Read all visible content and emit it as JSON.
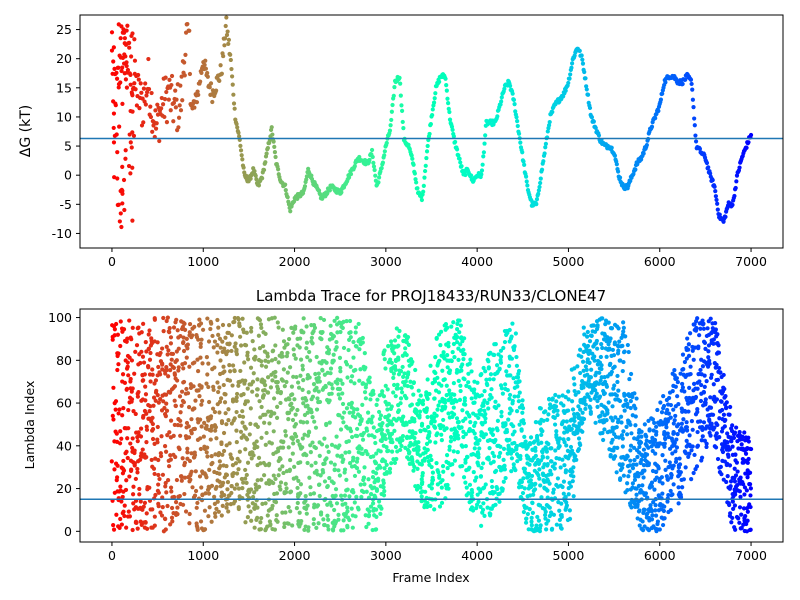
{
  "chart_data": [
    {
      "type": "scatter",
      "title": "",
      "xlabel": "",
      "ylabel": "ΔG (kT)",
      "xlim": [
        -350,
        7350
      ],
      "ylim": [
        -12.5,
        27.5
      ],
      "xticks": [
        0,
        1000,
        2000,
        3000,
        4000,
        5000,
        6000,
        7000
      ],
      "yticks": [
        -10,
        -5,
        0,
        5,
        10,
        15,
        20,
        25
      ],
      "colormap": "rainbow (red at frame 0 → violet at frame 7000)",
      "hline": {
        "y": 6.3,
        "color": "#1f77b4"
      },
      "trace_keypoints": {
        "x": [
          0,
          50,
          120,
          200,
          260,
          330,
          400,
          480,
          550,
          620,
          700,
          760,
          800,
          840,
          880,
          950,
          1000,
          1050,
          1100,
          1200,
          1250,
          1300,
          1350,
          1400,
          1450,
          1500,
          1550,
          1600,
          1650,
          1700,
          1750,
          1800,
          1850,
          1900,
          1950,
          2000,
          2100,
          2150,
          2200,
          2300,
          2400,
          2500,
          2600,
          2700,
          2800,
          2850,
          2900,
          2950,
          3000,
          3050,
          3100,
          3150,
          3200,
          3250,
          3300,
          3350,
          3400,
          3450,
          3500,
          3550,
          3600,
          3650,
          3700,
          3750,
          3800,
          3850,
          3900,
          3950,
          4000,
          4050,
          4100,
          4150,
          4200,
          4250,
          4300,
          4350,
          4400,
          4450,
          4500,
          4550,
          4600,
          4650,
          4700,
          4750,
          4800,
          4850,
          4900,
          4950,
          5000,
          5050,
          5100,
          5150,
          5200,
          5250,
          5300,
          5350,
          5400,
          5450,
          5500,
          5550,
          5600,
          5650,
          5700,
          5750,
          5800,
          5850,
          5900,
          5950,
          6000,
          6050,
          6100,
          6150,
          6200,
          6250,
          6300,
          6350,
          6400,
          6450,
          6500,
          6550,
          6600,
          6650,
          6700,
          6750,
          6800,
          6850,
          6900,
          6950,
          7000
        ],
        "y": [
          20,
          14,
          22,
          18,
          15,
          12,
          16,
          8,
          12,
          14,
          11,
          13,
          22,
          24,
          10,
          15,
          20,
          16,
          14,
          18,
          26,
          20,
          10,
          6,
          0,
          -1,
          1,
          -2,
          0,
          4,
          8,
          2,
          -1,
          -2,
          -6,
          -4,
          -3,
          1,
          -1,
          -4,
          -2,
          -3,
          0,
          3,
          2,
          4,
          -2,
          1,
          5,
          8,
          16,
          17,
          6,
          5,
          2,
          -3,
          -4,
          4,
          10,
          15,
          17,
          17,
          10,
          6,
          3,
          0,
          1,
          -1,
          0,
          0,
          9,
          9,
          9,
          12,
          15,
          16,
          13,
          8,
          3,
          -2,
          -5,
          -5,
          0,
          5,
          10,
          12,
          13,
          14,
          16,
          20,
          22,
          20,
          15,
          10,
          8,
          6,
          5,
          5,
          4,
          0,
          -2,
          -2,
          0,
          2,
          3,
          5,
          8,
          10,
          12,
          16,
          17,
          17,
          16,
          16,
          17,
          16,
          5,
          4,
          3,
          0,
          -2,
          -7,
          -8,
          -5,
          -5,
          0,
          3,
          5,
          7
        ]
      }
    },
    {
      "type": "scatter",
      "title": "Lambda Trace for PROJ18433/RUN33/CLONE47",
      "xlabel": "Frame Index",
      "ylabel": "Lambda Index",
      "xlim": [
        -350,
        7350
      ],
      "ylim": [
        -5,
        104
      ],
      "xticks": [
        0,
        1000,
        2000,
        3000,
        4000,
        5000,
        6000,
        7000
      ],
      "yticks": [
        0,
        20,
        40,
        60,
        80,
        100
      ],
      "colormap": "rainbow (red at frame 0 → violet at frame 7000)",
      "hline": {
        "y": 15,
        "color": "#1f77b4"
      },
      "density_bands": {
        "x": [
          0,
          500,
          1000,
          1300,
          1500,
          1800,
          2100,
          2400,
          2700,
          2900,
          3000,
          3200,
          3400,
          3600,
          3800,
          4000,
          4200,
          4400,
          4550,
          4700,
          5000,
          5200,
          5400,
          5600,
          5800,
          6000,
          6200,
          6400,
          6600,
          6800,
          7000
        ],
        "low": [
          0,
          0,
          0,
          10,
          0,
          0,
          0,
          0,
          0,
          0,
          20,
          40,
          10,
          10,
          30,
          0,
          10,
          30,
          0,
          0,
          0,
          60,
          40,
          20,
          0,
          0,
          10,
          30,
          40,
          0,
          0
        ],
        "high": [
          100,
          100,
          100,
          100,
          100,
          100,
          100,
          100,
          100,
          60,
          90,
          100,
          60,
          100,
          100,
          70,
          90,
          100,
          40,
          60,
          70,
          100,
          100,
          100,
          50,
          60,
          80,
          100,
          100,
          50,
          45
        ]
      }
    }
  ]
}
